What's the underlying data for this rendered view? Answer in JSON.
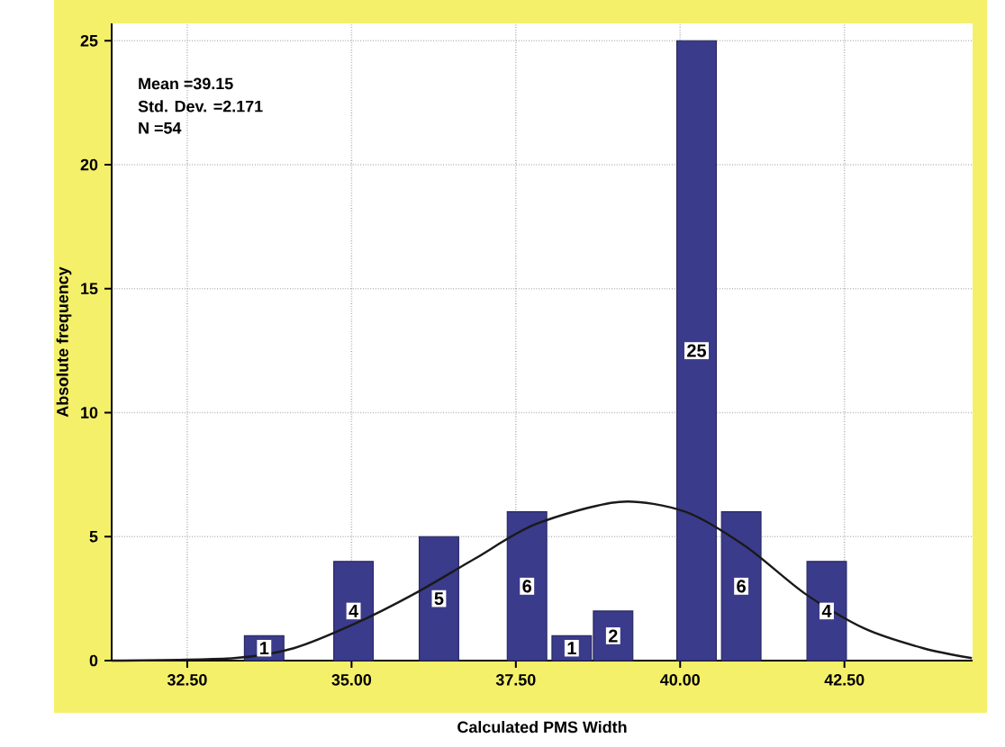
{
  "chart_data": {
    "type": "bar",
    "xlabel": "Calculated PMS Width",
    "ylabel": "Absolute frequency",
    "annotations": [
      "Mean =39.15",
      "Std. Dev. =2.171",
      "N =54"
    ],
    "xlim": [
      31.35,
      44.45
    ],
    "ylim": [
      0,
      25.7
    ],
    "xticks": [
      {
        "value": 32.5,
        "label": "32.50"
      },
      {
        "value": 35,
        "label": "35.00"
      },
      {
        "value": 37.5,
        "label": "37.50"
      },
      {
        "value": 40,
        "label": "40.00"
      },
      {
        "value": 42.5,
        "label": "42.50"
      }
    ],
    "yticks": [
      0,
      5,
      10,
      15,
      20,
      25
    ],
    "grid": true,
    "series": [
      {
        "color": "#3b3b8c",
        "x": [
          33.67,
          35.03,
          36.33,
          37.67,
          38.35,
          38.98,
          40.25,
          40.93,
          42.23
        ],
        "values": [
          1,
          4,
          5,
          6,
          1,
          2,
          25,
          6,
          4
        ],
        "value_labels": [
          "1",
          "4",
          "5",
          "6",
          "1",
          "2",
          "25",
          "6",
          "4"
        ]
      },
      {
        "type": "line",
        "color": "#1a1a1a",
        "x": [
          31.35,
          33.21,
          34.12,
          35.06,
          35.96,
          36.87,
          37.8,
          39.07,
          40.08,
          41.0,
          41.9,
          42.8,
          43.7,
          44.44
        ],
        "values": [
          0,
          0.1,
          0.5,
          1.5,
          2.7,
          4.1,
          5.5,
          6.4,
          6.0,
          4.6,
          2.7,
          1.3,
          0.5,
          0.1
        ]
      }
    ]
  }
}
